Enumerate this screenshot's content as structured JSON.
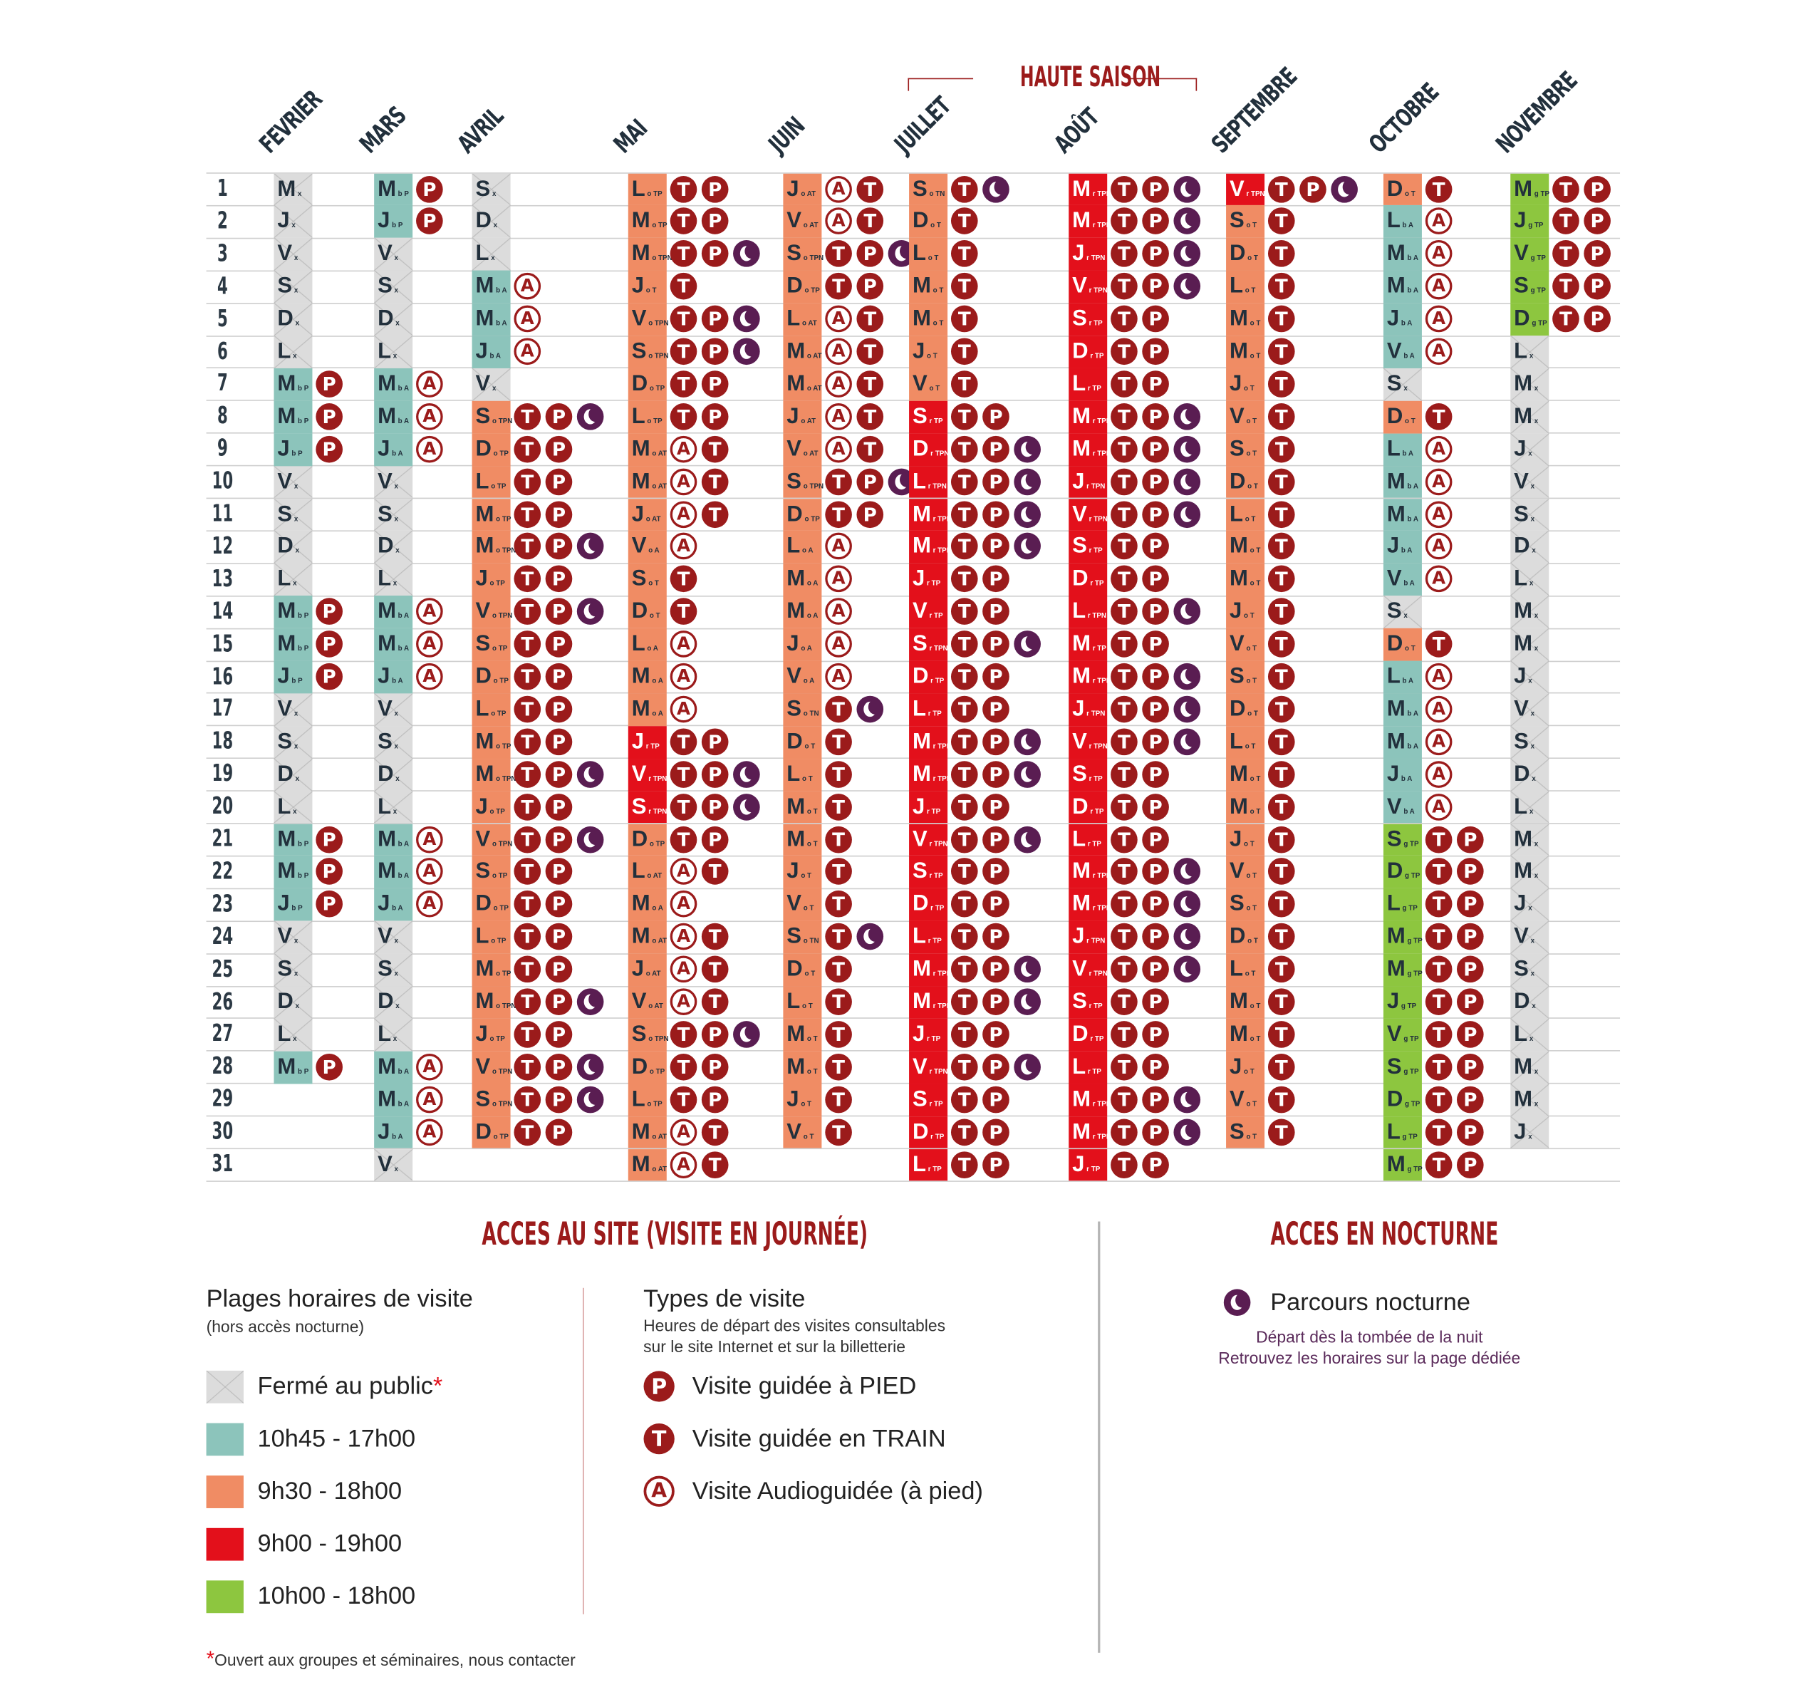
{
  "header": {
    "season_label": "HAUTE SAISON"
  },
  "colors": {
    "closed": "#dcdcdc",
    "b": "#8cc4bb",
    "o": "#f08c64",
    "r": "#e3101b",
    "g": "#8dc63f",
    "visit_icon": "#9b1b1b",
    "night_icon": "#5a1d52"
  },
  "codes": {
    "x": "Fermé au public",
    "b": "10h45 - 17h00",
    "o": "9h30 - 18h00",
    "r": "9h00 - 19h00",
    "g": "10h00 - 18h00",
    "P": "Visite guidée à PIED",
    "T": "Visite guidée en TRAIN",
    "A": "Visite Audioguidée (à pied)",
    "N": "Parcours nocturne"
  },
  "days": [
    "1",
    "2",
    "3",
    "4",
    "5",
    "6",
    "7",
    "8",
    "9",
    "10",
    "11",
    "12",
    "13",
    "14",
    "15",
    "16",
    "17",
    "18",
    "19",
    "20",
    "21",
    "22",
    "23",
    "24",
    "25",
    "26",
    "27",
    "28",
    "29",
    "30",
    "31"
  ],
  "months": [
    {
      "name": "FEVRIER",
      "days": [
        "M x",
        "J x",
        "V x",
        "S x",
        "D x",
        "L x",
        "M b P",
        "M b P",
        "J b P",
        "V x",
        "S x",
        "D x",
        "L x",
        "M b P",
        "M b P",
        "J b P",
        "V x",
        "S x",
        "D x",
        "L x",
        "M b P",
        "M b P",
        "J b P",
        "V x",
        "S x",
        "D x",
        "L x",
        "M b P"
      ]
    },
    {
      "name": "MARS",
      "days": [
        "M b P",
        "J b P",
        "V x",
        "S x",
        "D x",
        "L x",
        "M b A",
        "M b A",
        "J b A",
        "V x",
        "S x",
        "D x",
        "L x",
        "M b A",
        "M b A",
        "J b A",
        "V x",
        "S x",
        "D x",
        "L x",
        "M b A",
        "M b A",
        "J b A",
        "V x",
        "S x",
        "D x",
        "L x",
        "M b A",
        "M b A",
        "J b A",
        "V x"
      ]
    },
    {
      "name": "AVRIL",
      "days": [
        "S x",
        "D x",
        "L x",
        "M b A",
        "M b A",
        "J b A",
        "V x",
        "S o TPN",
        "D o TP",
        "L o TP",
        "M o TP",
        "M o TPN",
        "J o TP",
        "V o TPN",
        "S o TP",
        "D o TP",
        "L o TP",
        "M o TP",
        "M o TPN",
        "J o TP",
        "V o TPN",
        "S o TP",
        "D o TP",
        "L o TP",
        "M o TP",
        "M o TPN",
        "J o TP",
        "V o TPN",
        "S o TPN",
        "D o TP"
      ]
    },
    {
      "name": "MAI",
      "days": [
        "L o TP",
        "M o TP",
        "M o TPN",
        "J o T",
        "V o TPN",
        "S o TPN",
        "D o TP",
        "L o TP",
        "M o AT",
        "M o AT",
        "J o AT",
        "V o A",
        "S o T",
        "D o T",
        "L o A",
        "M o A",
        "M o A",
        "J r TP",
        "V r TPN",
        "S r TPN",
        "D o TP",
        "L o AT",
        "M o A",
        "M o AT",
        "J o AT",
        "V o AT",
        "S o TPN",
        "D o TP",
        "L o TP",
        "M o AT",
        "M o AT"
      ]
    },
    {
      "name": "JUIN",
      "days": [
        "J o AT",
        "V o AT",
        "S o TPN",
        "D o TP",
        "L o AT",
        "M o AT",
        "M o AT",
        "J o AT",
        "V o AT",
        "S o TPN",
        "D o TP",
        "L o A",
        "M o A",
        "M o A",
        "J o A",
        "V o A",
        "S o TN",
        "D o T",
        "L o T",
        "M o T",
        "M o T",
        "J o T",
        "V o T",
        "S o TN",
        "D o T",
        "L o T",
        "M o T",
        "M o T",
        "J o T",
        "V o T"
      ]
    },
    {
      "name": "JUILLET",
      "days": [
        "S o TN",
        "D o T",
        "L o T",
        "M o T",
        "M o T",
        "J o T",
        "V o T",
        "S r TP",
        "D r TPN",
        "L r TPN",
        "M r TPN",
        "M r TPN",
        "J r TP",
        "V r TP",
        "S r TPN",
        "D r TP",
        "L r TP",
        "M r TPN",
        "M r TPN",
        "J r TP",
        "V r TPN",
        "S r TP",
        "D r TP",
        "L r TP",
        "M r TPN",
        "M r TPN",
        "J r TP",
        "V r TPN",
        "S r TP",
        "D r TP",
        "L r TP"
      ]
    },
    {
      "name": "AOÛT",
      "days": [
        "M r TPN",
        "M r TPN",
        "J r TPN",
        "V r TPN",
        "S r TP",
        "D r TP",
        "L r TP",
        "M r TPN",
        "M r TPN",
        "J r TPN",
        "V r TPN",
        "S r TP",
        "D r TP",
        "L r TPN",
        "M r TP",
        "M r TPN",
        "J r TPN",
        "V r TPN",
        "S r TP",
        "D r TP",
        "L r TP",
        "M r TPN",
        "M r TPN",
        "J r TPN",
        "V r TPN",
        "S r TP",
        "D r TP",
        "L r TP",
        "M r TPN",
        "M r TPN",
        "J r TP"
      ]
    },
    {
      "name": "SEPTEMBRE",
      "days": [
        "V r TPN",
        "S o T",
        "D o T",
        "L o T",
        "M o T",
        "M o T",
        "J o T",
        "V o T",
        "S o T",
        "D o T",
        "L o T",
        "M o T",
        "M o T",
        "J o T",
        "V o T",
        "S o T",
        "D o T",
        "L o T",
        "M o T",
        "M o T",
        "J o T",
        "V o T",
        "S o T",
        "D o T",
        "L o T",
        "M o T",
        "M o T",
        "J o T",
        "V o T",
        "S o T"
      ]
    },
    {
      "name": "OCTOBRE",
      "days": [
        "D o T",
        "L b A",
        "M b A",
        "M b A",
        "J b A",
        "V b A",
        "S x",
        "D o T",
        "L b A",
        "M b A",
        "M b A",
        "J b A",
        "V b A",
        "S x",
        "D o T",
        "L b A",
        "M b A",
        "M b A",
        "J b A",
        "V b A",
        "S g TP",
        "D g TP",
        "L g TP",
        "M g TP",
        "M g TP",
        "J g TP",
        "V g TP",
        "S g TP",
        "D g TP",
        "L g TP",
        "M g TP"
      ]
    },
    {
      "name": "NOVEMBRE",
      "days": [
        "M g TP",
        "J g TP",
        "V g TP",
        "S g TP",
        "D g TP",
        "L x",
        "M x",
        "M x",
        "J x",
        "V x",
        "S x",
        "D x",
        "L x",
        "M x",
        "M x",
        "J x",
        "V x",
        "S x",
        "D x",
        "L x",
        "M x",
        "M x",
        "J x",
        "V x",
        "S x",
        "D x",
        "L x",
        "M x",
        "M x",
        "J x"
      ]
    }
  ],
  "legend": {
    "day_title": "ACCES AU SITE (VISITE EN JOURNÉE)",
    "night_title": "ACCES EN NOCTURNE",
    "hours_title": "Plages horaires de visite",
    "hours_subtitle": "(hors accès nocturne)",
    "hours": [
      {
        "code": "x",
        "label": "Fermé au public",
        "asterisk": "*"
      },
      {
        "code": "b",
        "label": "10h45 - 17h00"
      },
      {
        "code": "o",
        "label": "9h30 - 18h00"
      },
      {
        "code": "r",
        "label": "9h00 - 19h00"
      },
      {
        "code": "g",
        "label": "10h00 - 18h00"
      }
    ],
    "types_title": "Types de visite",
    "types_sub1": "Heures de départ des visites consultables",
    "types_sub2": "sur le site Internet et sur la billetterie",
    "types": [
      {
        "code": "P",
        "label": "Visite guidée à PIED"
      },
      {
        "code": "T",
        "label": "Visite guidée en TRAIN"
      },
      {
        "code": "A",
        "label": "Visite Audioguidée (à pied)"
      }
    ],
    "night_label": "Parcours nocturne",
    "night_sub1": "Départ dès la tombée de la nuit",
    "night_sub2": "Retrouvez les horaires sur la page dédiée",
    "footnote_mark": "*",
    "footnote": "Ouvert aux groupes et séminaires, nous contacter"
  }
}
